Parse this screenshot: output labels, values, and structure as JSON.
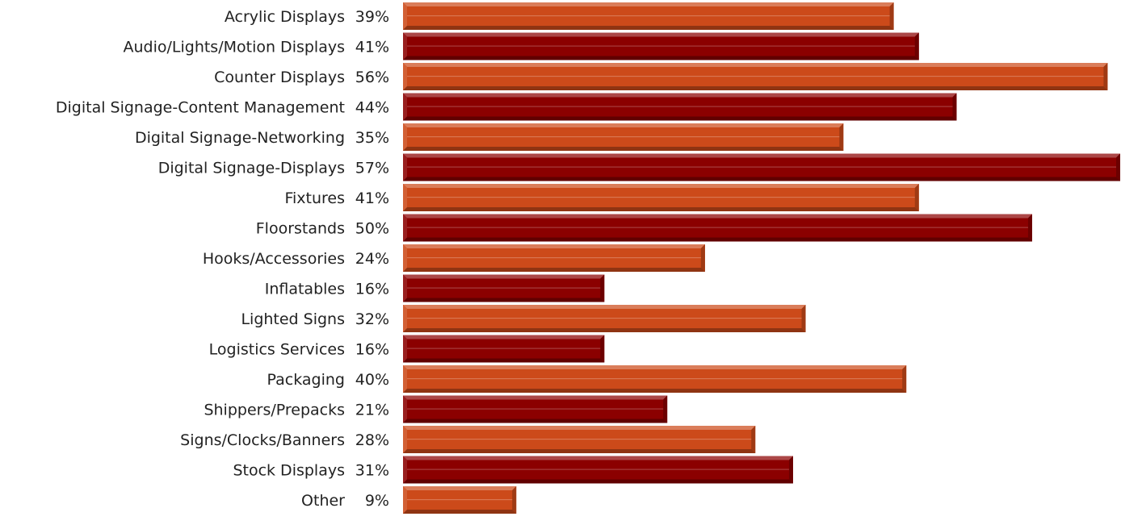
{
  "chart_data": {
    "type": "bar",
    "orientation": "horizontal",
    "title": "",
    "xlabel": "",
    "ylabel": "",
    "grid": false,
    "legend": "none",
    "xlim": [
      0,
      57
    ],
    "categories": [
      "Acrylic Displays",
      "Audio/Lights/Motion Displays",
      "Counter Displays",
      "Digital Signage-Content Management",
      "Digital Signage-Networking",
      "Digital Signage-Displays",
      "Fixtures",
      "Floorstands",
      "Hooks/Accessories",
      "Inflatables",
      "Lighted Signs",
      "Logistics Services",
      "Packaging",
      "Shippers/Prepacks",
      "Signs/Clocks/Banners",
      "Stock Displays",
      "Other"
    ],
    "values": [
      39,
      41,
      56,
      44,
      35,
      57,
      41,
      50,
      24,
      16,
      32,
      16,
      40,
      21,
      28,
      31,
      9
    ],
    "value_labels": [
      "39%",
      "41%",
      "56%",
      "44%",
      "35%",
      "57%",
      "41%",
      "50%",
      "24%",
      "16%",
      "32%",
      "16%",
      "40%",
      "21%",
      "28%",
      "31%",
      "9%"
    ],
    "colors": {
      "odd_rows": "#cc4a1a",
      "even_rows": "#8b0000"
    }
  }
}
